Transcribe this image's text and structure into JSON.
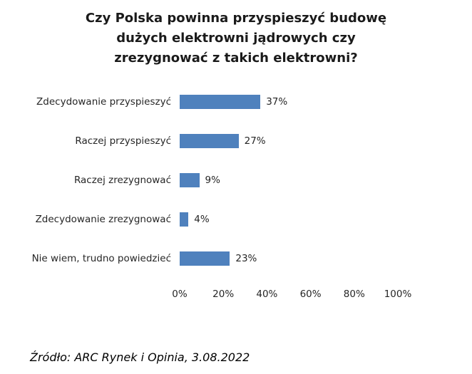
{
  "chart_data": {
    "type": "bar",
    "orientation": "horizontal",
    "title": "Czy Polska powinna przyspieszyć budowę\ndużych elektrowni jądrowych czy\nzrezygnować z takich elektrowni?",
    "categories": [
      "Zdecydowanie przyspieszyć",
      "Raczej przyspieszyć",
      "Raczej zrezygnować",
      "Zdecydowanie zrezygnować",
      "Nie wiem, trudno powiedzieć"
    ],
    "values": [
      37,
      27,
      9,
      4,
      23
    ],
    "value_labels": [
      "37%",
      "27%",
      "9%",
      "4%",
      "23%"
    ],
    "x_ticks": [
      "0%",
      "20%",
      "40%",
      "60%",
      "80%",
      "100%"
    ],
    "xlim": [
      0,
      100
    ],
    "xlabel": "",
    "ylabel": "",
    "grid": false,
    "legend": false,
    "bar_color": "#4f81bd"
  },
  "source": "Źródło: ARC Rynek i Opinia, 3.08.2022"
}
